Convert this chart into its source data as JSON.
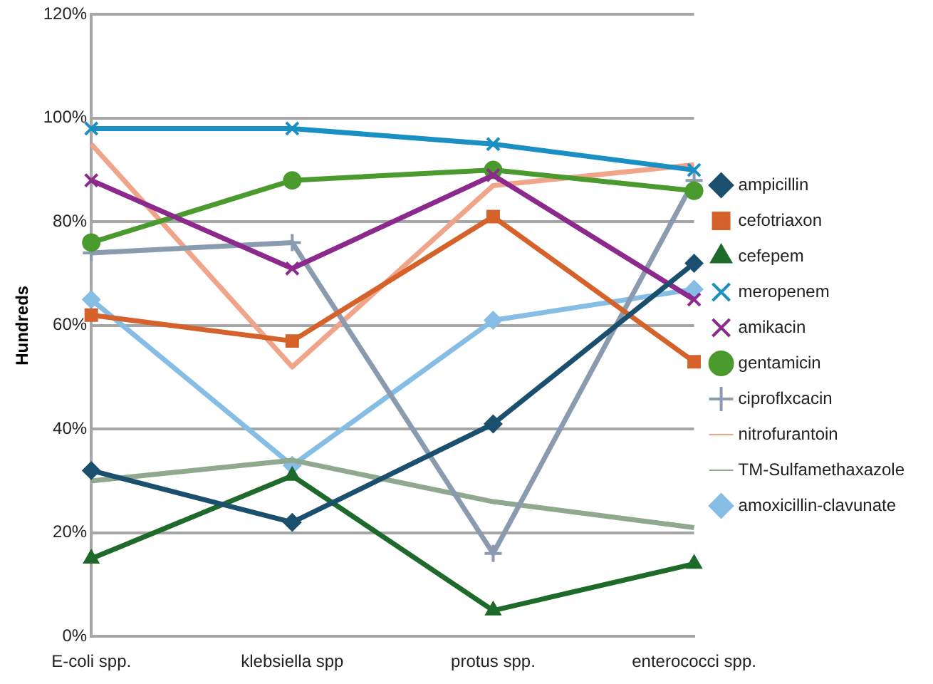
{
  "chart_data": {
    "type": "line",
    "ylabel": "Hundreds",
    "categories": [
      "E-coli spp.",
      "klebsiella spp",
      "protus spp.",
      "enterococci spp."
    ],
    "ylim": [
      0,
      120
    ],
    "yticks": [
      {
        "value": 0,
        "label": "0%"
      },
      {
        "value": 20,
        "label": "20%"
      },
      {
        "value": 40,
        "label": "40%"
      },
      {
        "value": 60,
        "label": "60%"
      },
      {
        "value": 80,
        "label": "80%"
      },
      {
        "value": 100,
        "label": "100%"
      },
      {
        "value": 120,
        "label": "120%"
      }
    ],
    "grid": "y",
    "legend": "right",
    "series": [
      {
        "name": "ampicillin",
        "color": "#1b4f6e",
        "marker": "diamond",
        "values": [
          32,
          22,
          41,
          72
        ]
      },
      {
        "name": "cefotriaxon",
        "color": "#d4622a",
        "marker": "square",
        "values": [
          62,
          57,
          81,
          53
        ]
      },
      {
        "name": "cefepem",
        "color": "#1e6a2a",
        "marker": "triangle",
        "values": [
          15,
          31,
          5,
          14
        ]
      },
      {
        "name": "meropenem",
        "color": "#1a8fc4",
        "marker": "cross",
        "values": [
          98,
          98,
          95,
          90
        ]
      },
      {
        "name": "amikacin",
        "color": "#8b2a8c",
        "marker": "cross",
        "values": [
          88,
          71,
          89,
          65
        ]
      },
      {
        "name": "gentamicin",
        "color": "#4a9a2e",
        "marker": "circle",
        "values": [
          76,
          88,
          90,
          86
        ]
      },
      {
        "name": "ciproflxcacin",
        "color": "#8a9bb0",
        "marker": "plus",
        "values": [
          74,
          76,
          16,
          88
        ]
      },
      {
        "name": "nitrofurantoin",
        "color": "#f0a58a",
        "marker": "none",
        "values": [
          95,
          52,
          87,
          91
        ]
      },
      {
        "name": "TM-Sulfamethaxazole",
        "color": "#8fa88e",
        "marker": "none",
        "values": [
          30,
          34,
          26,
          21
        ]
      },
      {
        "name": "amoxicillin-clavunate",
        "color": "#86bde4",
        "marker": "diamond",
        "values": [
          65,
          33,
          61,
          67
        ]
      }
    ]
  }
}
